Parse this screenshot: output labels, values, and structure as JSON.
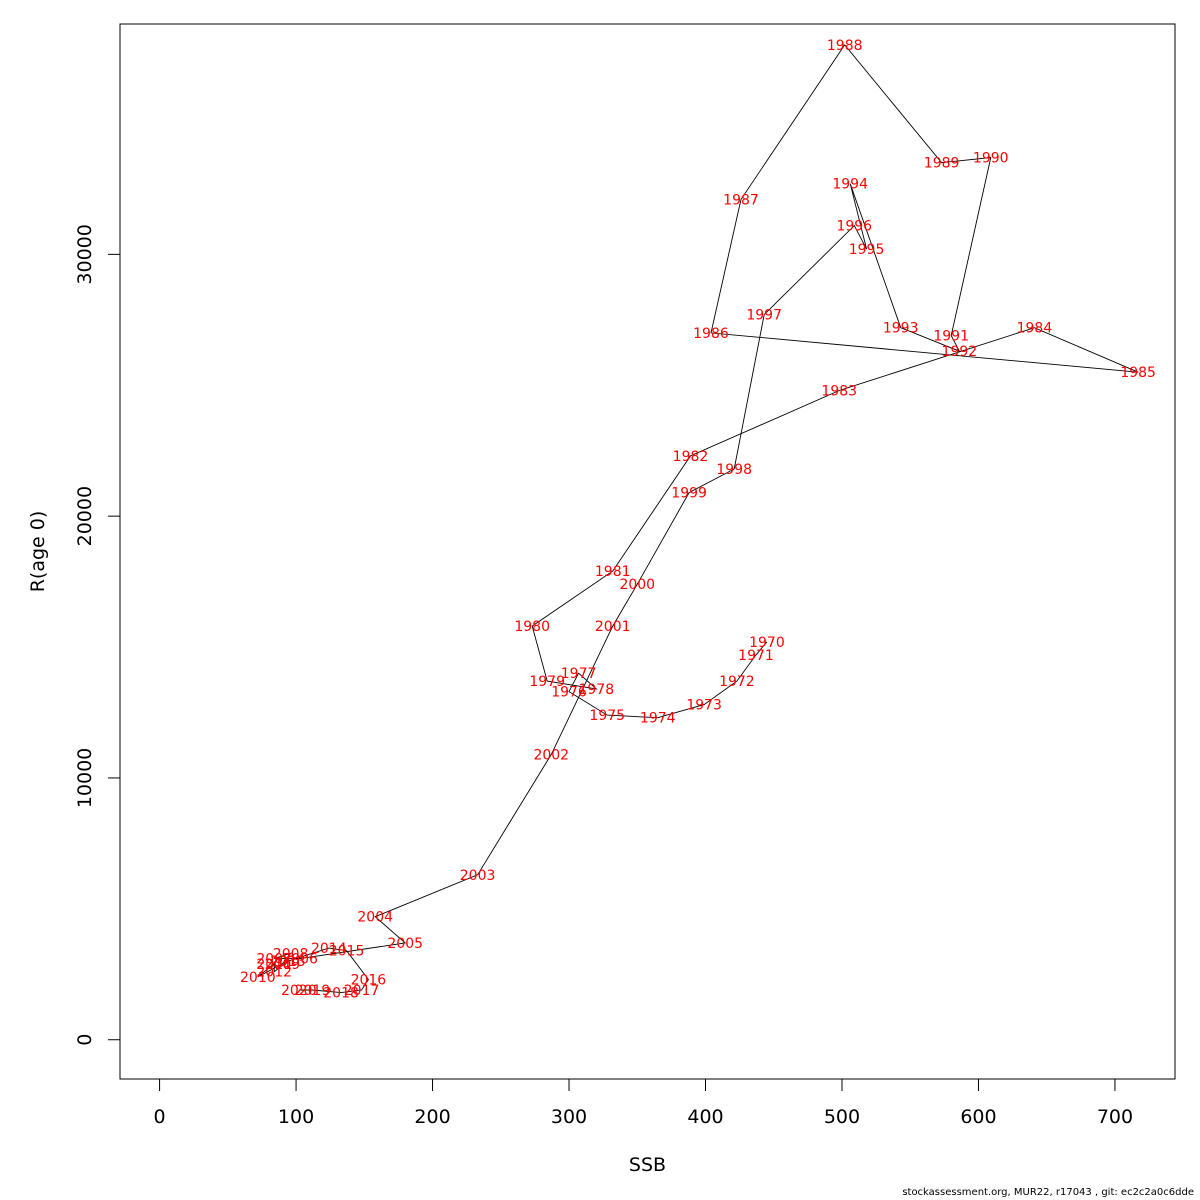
{
  "footer_text": "stockassessment.org, MUR22, r17043 , git: ec2c2a0c6dde",
  "chart_data": {
    "type": "line",
    "xlabel": "SSB",
    "ylabel": "R(age 0)",
    "xlim": [
      -29,
      744
    ],
    "ylim": [
      -1500,
      38800
    ],
    "xticks": [
      0,
      100,
      200,
      300,
      400,
      500,
      600,
      700
    ],
    "yticks": [
      0,
      10000,
      20000,
      30000
    ],
    "line_color": "#000000",
    "label_color": "#ff0000",
    "points": [
      {
        "year": "1970",
        "x": 445,
        "y": 15200
      },
      {
        "year": "1971",
        "x": 437,
        "y": 14700
      },
      {
        "year": "1972",
        "x": 423,
        "y": 13700
      },
      {
        "year": "1973",
        "x": 399,
        "y": 12800
      },
      {
        "year": "1974",
        "x": 365,
        "y": 12300
      },
      {
        "year": "1975",
        "x": 328,
        "y": 12400
      },
      {
        "year": "1976",
        "x": 300,
        "y": 13300
      },
      {
        "year": "1977",
        "x": 307,
        "y": 14000
      },
      {
        "year": "1978",
        "x": 320,
        "y": 13400
      },
      {
        "year": "1979",
        "x": 284,
        "y": 13700
      },
      {
        "year": "1980",
        "x": 273,
        "y": 15800
      },
      {
        "year": "1981",
        "x": 332,
        "y": 17900
      },
      {
        "year": "1982",
        "x": 389,
        "y": 22300
      },
      {
        "year": "1983",
        "x": 498,
        "y": 24800
      },
      {
        "year": "1984",
        "x": 641,
        "y": 27200
      },
      {
        "year": "1985",
        "x": 717,
        "y": 25500
      },
      {
        "year": "1986",
        "x": 404,
        "y": 27000
      },
      {
        "year": "1987",
        "x": 426,
        "y": 32100
      },
      {
        "year": "1988",
        "x": 502,
        "y": 38000
      },
      {
        "year": "1989",
        "x": 573,
        "y": 33500
      },
      {
        "year": "1990",
        "x": 609,
        "y": 33700
      },
      {
        "year": "1991",
        "x": 580,
        "y": 26900
      },
      {
        "year": "1992",
        "x": 586,
        "y": 26300
      },
      {
        "year": "1993",
        "x": 543,
        "y": 27200
      },
      {
        "year": "1994",
        "x": 506,
        "y": 32700
      },
      {
        "year": "1995",
        "x": 518,
        "y": 30200
      },
      {
        "year": "1996",
        "x": 509,
        "y": 31100
      },
      {
        "year": "1997",
        "x": 443,
        "y": 27700
      },
      {
        "year": "1998",
        "x": 421,
        "y": 21800
      },
      {
        "year": "1999",
        "x": 388,
        "y": 20900
      },
      {
        "year": "2000",
        "x": 350,
        "y": 17400
      },
      {
        "year": "2001",
        "x": 332,
        "y": 15800
      },
      {
        "year": "2002",
        "x": 287,
        "y": 10900
      },
      {
        "year": "2003",
        "x": 233,
        "y": 6300
      },
      {
        "year": "2004",
        "x": 158,
        "y": 4700
      },
      {
        "year": "2005",
        "x": 180,
        "y": 3700
      },
      {
        "year": "2006",
        "x": 103,
        "y": 3100
      },
      {
        "year": "2007",
        "x": 84,
        "y": 3100
      },
      {
        "year": "2008",
        "x": 96,
        "y": 3300
      },
      {
        "year": "2009",
        "x": 90,
        "y": 2900
      },
      {
        "year": "2010",
        "x": 72,
        "y": 2400
      },
      {
        "year": "2011",
        "x": 84,
        "y": 2900
      },
      {
        "year": "2012",
        "x": 84,
        "y": 2600
      },
      {
        "year": "2013",
        "x": 94,
        "y": 3000
      },
      {
        "year": "2014",
        "x": 124,
        "y": 3500
      },
      {
        "year": "2015",
        "x": 137,
        "y": 3400
      },
      {
        "year": "2016",
        "x": 153,
        "y": 2300
      },
      {
        "year": "2017",
        "x": 148,
        "y": 1900
      },
      {
        "year": "2018",
        "x": 133,
        "y": 1800
      },
      {
        "year": "2019",
        "x": 112,
        "y": 1900
      },
      {
        "year": "2020",
        "x": 102,
        "y": 1900
      }
    ]
  }
}
